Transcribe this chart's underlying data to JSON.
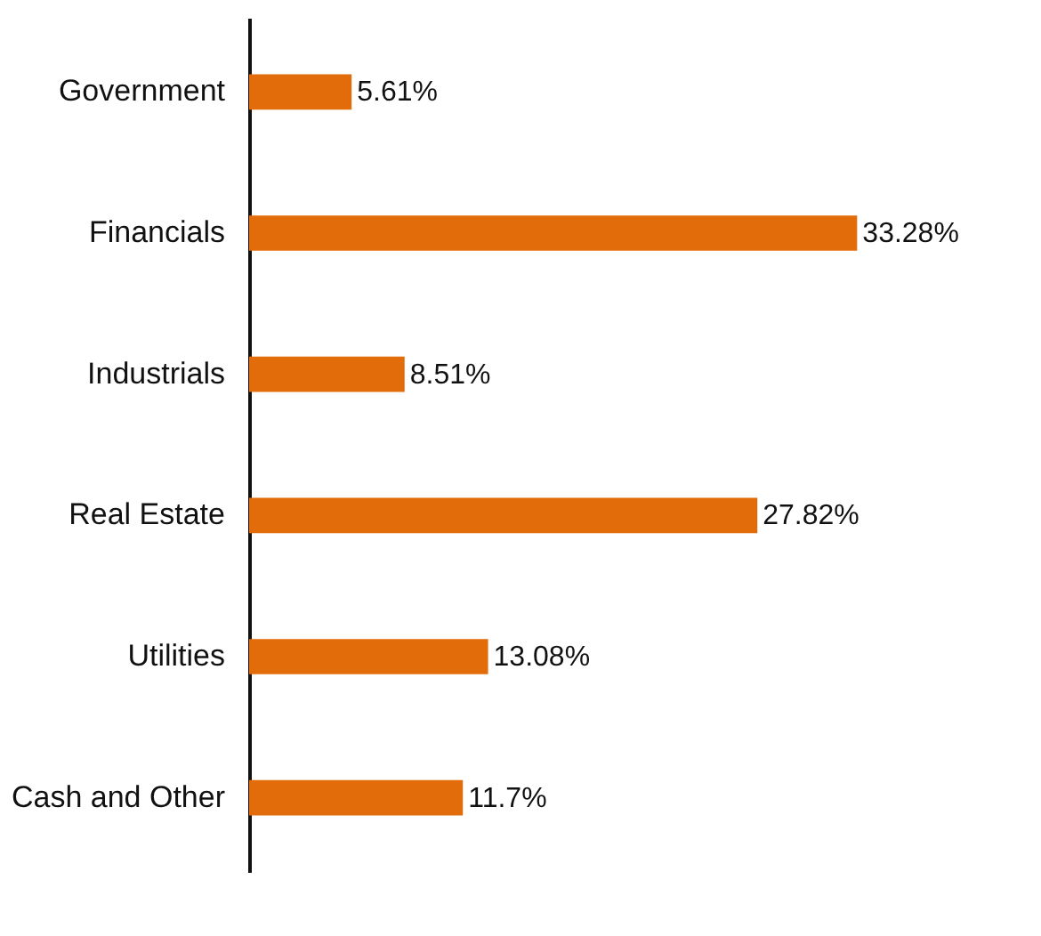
{
  "chart_data": {
    "type": "bar",
    "orientation": "horizontal",
    "categories": [
      "Government",
      "Financials",
      "Industrials",
      "Real Estate",
      "Utilities",
      "Cash and Other"
    ],
    "values": [
      5.61,
      33.28,
      8.51,
      27.82,
      13.08,
      11.7
    ],
    "value_labels": [
      "5.61%",
      "33.28%",
      "8.51%",
      "27.82%",
      "13.08%",
      "11.7%"
    ],
    "color": "#e36c0a",
    "grid": false
  }
}
